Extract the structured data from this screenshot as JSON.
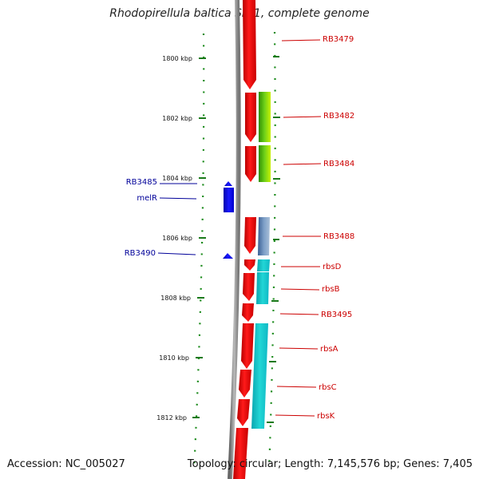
{
  "title": "Rhodopirellula baltica SH 1, complete genome",
  "footer": {
    "accession": "Accession: NC_005027",
    "topology": "Topology: circular; Length: 7,145,576 bp; Genes: 7,405"
  },
  "colors": {
    "backbone": "#888888",
    "tick": "#1a8a1a",
    "forward_gene": "#ee0000",
    "reverse_gene": "#0000ee",
    "forward_label": "#cc0000",
    "reverse_label": "#000099",
    "green_feature": "#7ad81a",
    "cyan_feature": "#19c6c6",
    "steel_feature": "#5f86b0"
  },
  "kbp_labels": [
    "1800 kbp",
    "1802 kbp",
    "1804 kbp",
    "1806 kbp",
    "1808 kbp",
    "1810 kbp",
    "1812 kbp"
  ],
  "right_labels": [
    "RB3479",
    "RB3482",
    "RB3484",
    "RB3488",
    "rbsD",
    "rbsB",
    "RB3495",
    "rbsA",
    "rbsC",
    "rbsK"
  ],
  "left_labels": [
    "RB3485",
    "melR",
    "RB3490"
  ]
}
